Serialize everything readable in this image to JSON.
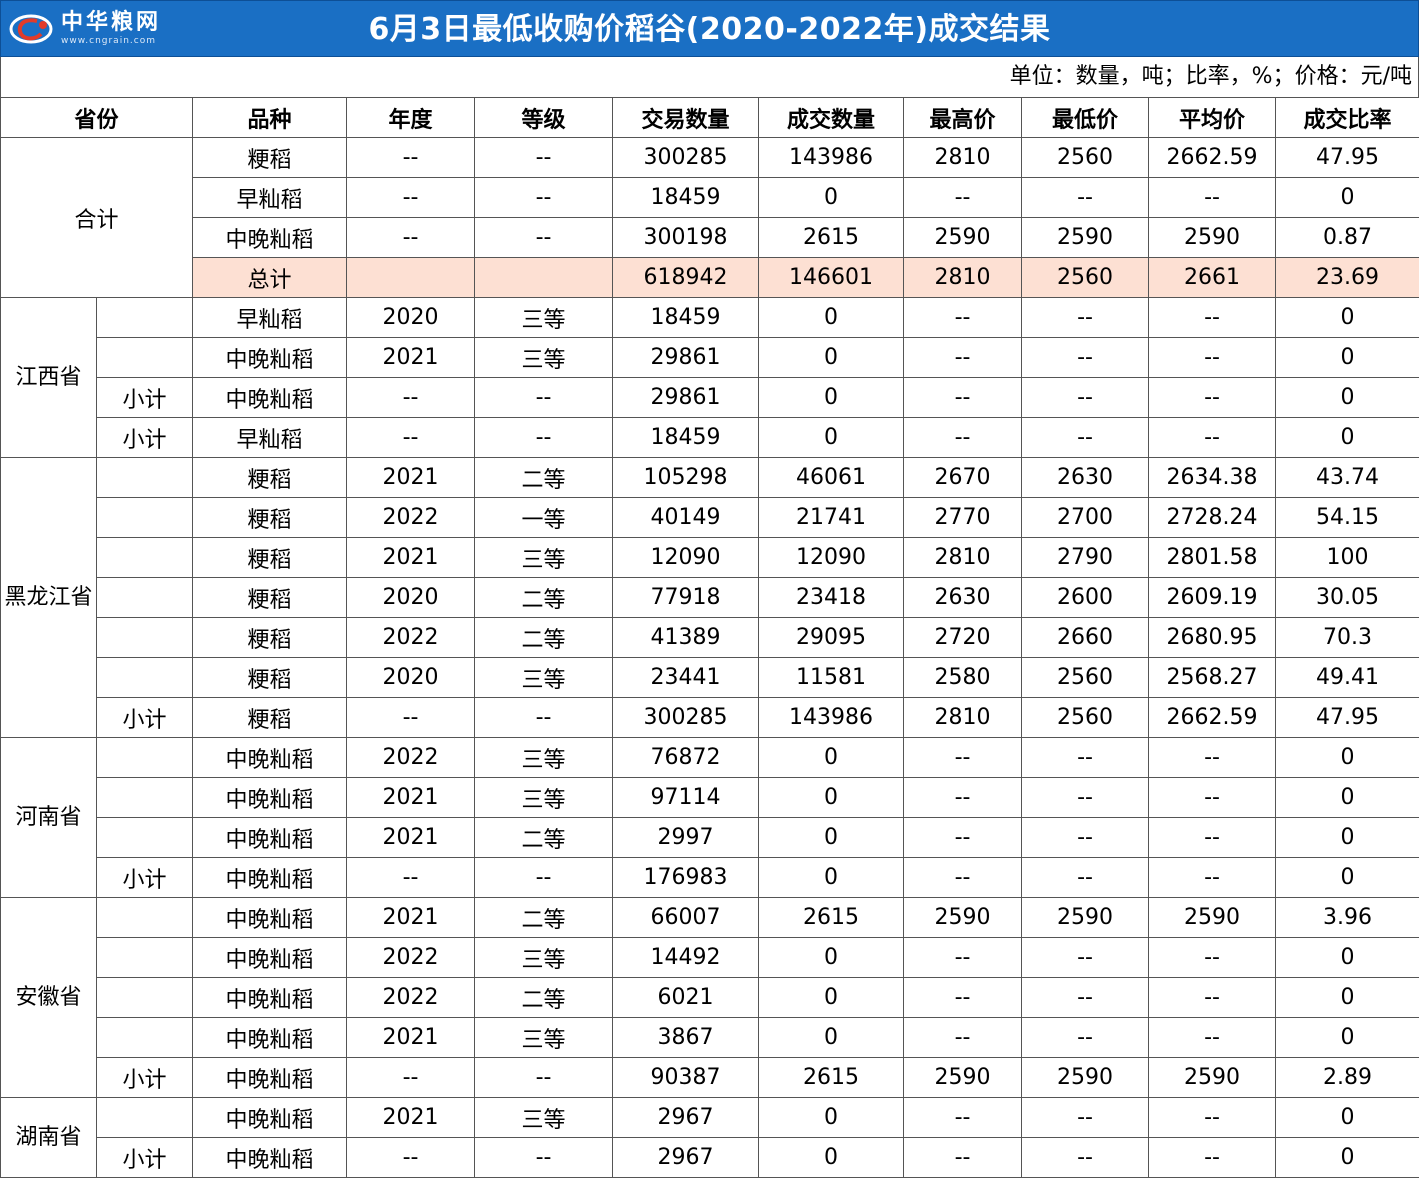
{
  "header": {
    "title": "6月3日最低收购价稻谷(2020-2022年)成交结果",
    "logo_name": "中华粮网",
    "logo_url": "www.cngrain.com"
  },
  "unit_note": "单位：数量，吨；比率，%；价格：元/吨",
  "columns": [
    "省份",
    "品种",
    "年度",
    "等级",
    "交易数量",
    "成交数量",
    "最高价",
    "最低价",
    "平均价",
    "成交比率"
  ],
  "summary": {
    "label": "合计",
    "rows": [
      {
        "variety": "粳稻",
        "year": "--",
        "grade": "--",
        "trade_qty": "300285",
        "deal_qty": "143986",
        "max_price": "2810",
        "min_price": "2560",
        "avg_price": "2662.59",
        "deal_ratio": "47.95"
      },
      {
        "variety": "早籼稻",
        "year": "--",
        "grade": "--",
        "trade_qty": "18459",
        "deal_qty": "0",
        "max_price": "--",
        "min_price": "--",
        "avg_price": "--",
        "deal_ratio": "0"
      },
      {
        "variety": "中晚籼稻",
        "year": "--",
        "grade": "--",
        "trade_qty": "300198",
        "deal_qty": "2615",
        "max_price": "2590",
        "min_price": "2590",
        "avg_price": "2590",
        "deal_ratio": "0.87"
      }
    ],
    "total": {
      "variety": "总计",
      "year": "",
      "grade": "",
      "trade_qty": "618942",
      "deal_qty": "146601",
      "max_price": "2810",
      "min_price": "2560",
      "avg_price": "2661",
      "deal_ratio": "23.69"
    }
  },
  "provinces": [
    {
      "name": "江西省",
      "rows": [
        {
          "sub": "",
          "variety": "早籼稻",
          "year": "2020",
          "grade": "三等",
          "trade_qty": "18459",
          "deal_qty": "0",
          "max_price": "--",
          "min_price": "--",
          "avg_price": "--",
          "deal_ratio": "0"
        },
        {
          "sub": "",
          "variety": "中晚籼稻",
          "year": "2021",
          "grade": "三等",
          "trade_qty": "29861",
          "deal_qty": "0",
          "max_price": "--",
          "min_price": "--",
          "avg_price": "--",
          "deal_ratio": "0"
        },
        {
          "sub": "小计",
          "variety": "中晚籼稻",
          "year": "--",
          "grade": "--",
          "trade_qty": "29861",
          "deal_qty": "0",
          "max_price": "--",
          "min_price": "--",
          "avg_price": "--",
          "deal_ratio": "0"
        },
        {
          "sub": "小计",
          "variety": "早籼稻",
          "year": "--",
          "grade": "--",
          "trade_qty": "18459",
          "deal_qty": "0",
          "max_price": "--",
          "min_price": "--",
          "avg_price": "--",
          "deal_ratio": "0"
        }
      ]
    },
    {
      "name": "黑龙江省",
      "rows": [
        {
          "sub": "",
          "variety": "粳稻",
          "year": "2021",
          "grade": "二等",
          "trade_qty": "105298",
          "deal_qty": "46061",
          "max_price": "2670",
          "min_price": "2630",
          "avg_price": "2634.38",
          "deal_ratio": "43.74"
        },
        {
          "sub": "",
          "variety": "粳稻",
          "year": "2022",
          "grade": "一等",
          "trade_qty": "40149",
          "deal_qty": "21741",
          "max_price": "2770",
          "min_price": "2700",
          "avg_price": "2728.24",
          "deal_ratio": "54.15"
        },
        {
          "sub": "",
          "variety": "粳稻",
          "year": "2021",
          "grade": "三等",
          "trade_qty": "12090",
          "deal_qty": "12090",
          "max_price": "2810",
          "min_price": "2790",
          "avg_price": "2801.58",
          "deal_ratio": "100"
        },
        {
          "sub": "",
          "variety": "粳稻",
          "year": "2020",
          "grade": "二等",
          "trade_qty": "77918",
          "deal_qty": "23418",
          "max_price": "2630",
          "min_price": "2600",
          "avg_price": "2609.19",
          "deal_ratio": "30.05"
        },
        {
          "sub": "",
          "variety": "粳稻",
          "year": "2022",
          "grade": "二等",
          "trade_qty": "41389",
          "deal_qty": "29095",
          "max_price": "2720",
          "min_price": "2660",
          "avg_price": "2680.95",
          "deal_ratio": "70.3"
        },
        {
          "sub": "",
          "variety": "粳稻",
          "year": "2020",
          "grade": "三等",
          "trade_qty": "23441",
          "deal_qty": "11581",
          "max_price": "2580",
          "min_price": "2560",
          "avg_price": "2568.27",
          "deal_ratio": "49.41"
        },
        {
          "sub": "小计",
          "variety": "粳稻",
          "year": "--",
          "grade": "--",
          "trade_qty": "300285",
          "deal_qty": "143986",
          "max_price": "2810",
          "min_price": "2560",
          "avg_price": "2662.59",
          "deal_ratio": "47.95"
        }
      ]
    },
    {
      "name": "河南省",
      "rows": [
        {
          "sub": "",
          "variety": "中晚籼稻",
          "year": "2022",
          "grade": "三等",
          "trade_qty": "76872",
          "deal_qty": "0",
          "max_price": "--",
          "min_price": "--",
          "avg_price": "--",
          "deal_ratio": "0"
        },
        {
          "sub": "",
          "variety": "中晚籼稻",
          "year": "2021",
          "grade": "三等",
          "trade_qty": "97114",
          "deal_qty": "0",
          "max_price": "--",
          "min_price": "--",
          "avg_price": "--",
          "deal_ratio": "0"
        },
        {
          "sub": "",
          "variety": "中晚籼稻",
          "year": "2021",
          "grade": "二等",
          "trade_qty": "2997",
          "deal_qty": "0",
          "max_price": "--",
          "min_price": "--",
          "avg_price": "--",
          "deal_ratio": "0"
        },
        {
          "sub": "小计",
          "variety": "中晚籼稻",
          "year": "--",
          "grade": "--",
          "trade_qty": "176983",
          "deal_qty": "0",
          "max_price": "--",
          "min_price": "--",
          "avg_price": "--",
          "deal_ratio": "0"
        }
      ]
    },
    {
      "name": "安徽省",
      "rows": [
        {
          "sub": "",
          "variety": "中晚籼稻",
          "year": "2021",
          "grade": "二等",
          "trade_qty": "66007",
          "deal_qty": "2615",
          "max_price": "2590",
          "min_price": "2590",
          "avg_price": "2590",
          "deal_ratio": "3.96"
        },
        {
          "sub": "",
          "variety": "中晚籼稻",
          "year": "2022",
          "grade": "三等",
          "trade_qty": "14492",
          "deal_qty": "0",
          "max_price": "--",
          "min_price": "--",
          "avg_price": "--",
          "deal_ratio": "0"
        },
        {
          "sub": "",
          "variety": "中晚籼稻",
          "year": "2022",
          "grade": "二等",
          "trade_qty": "6021",
          "deal_qty": "0",
          "max_price": "--",
          "min_price": "--",
          "avg_price": "--",
          "deal_ratio": "0"
        },
        {
          "sub": "",
          "variety": "中晚籼稻",
          "year": "2021",
          "grade": "三等",
          "trade_qty": "3867",
          "deal_qty": "0",
          "max_price": "--",
          "min_price": "--",
          "avg_price": "--",
          "deal_ratio": "0"
        },
        {
          "sub": "小计",
          "variety": "中晚籼稻",
          "year": "--",
          "grade": "--",
          "trade_qty": "90387",
          "deal_qty": "2615",
          "max_price": "2590",
          "min_price": "2590",
          "avg_price": "2590",
          "deal_ratio": "2.89"
        }
      ]
    },
    {
      "name": "湖南省",
      "rows": [
        {
          "sub": "",
          "variety": "中晚籼稻",
          "year": "2021",
          "grade": "三等",
          "trade_qty": "2967",
          "deal_qty": "0",
          "max_price": "--",
          "min_price": "--",
          "avg_price": "--",
          "deal_ratio": "0"
        },
        {
          "sub": "小计",
          "variety": "中晚籼稻",
          "year": "--",
          "grade": "--",
          "trade_qty": "2967",
          "deal_qty": "0",
          "max_price": "--",
          "min_price": "--",
          "avg_price": "--",
          "deal_ratio": "0"
        }
      ]
    }
  ]
}
